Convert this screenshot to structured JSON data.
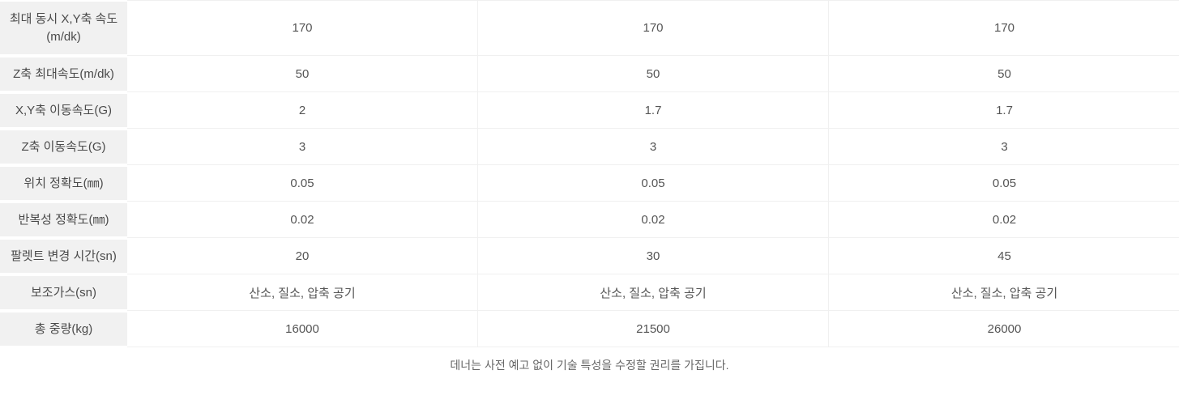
{
  "table": {
    "rows": [
      {
        "label": "최대 동시 X,Y축 속도 (m/dk)",
        "values": [
          "170",
          "170",
          "170"
        ]
      },
      {
        "label": "Z축 최대속도(m/dk)",
        "values": [
          "50",
          "50",
          "50"
        ]
      },
      {
        "label": "X,Y축 이동속도(G)",
        "values": [
          "2",
          "1.7",
          "1.7"
        ]
      },
      {
        "label": "Z축 이동속도(G)",
        "values": [
          "3",
          "3",
          "3"
        ]
      },
      {
        "label": "위치 정확도(㎜)",
        "values": [
          "0.05",
          "0.05",
          "0.05"
        ]
      },
      {
        "label": "반복성 정확도(㎜)",
        "values": [
          "0.02",
          "0.02",
          "0.02"
        ]
      },
      {
        "label": "팔렛트 변경 시간(sn)",
        "values": [
          "20",
          "30",
          "45"
        ]
      },
      {
        "label": "보조가스(sn)",
        "values": [
          "산소, 질소, 압축 공기",
          "산소, 질소, 압축 공기",
          "산소, 질소, 압축 공기"
        ]
      },
      {
        "label": "총 중량(kg)",
        "values": [
          "16000",
          "21500",
          "26000"
        ]
      }
    ]
  },
  "footer": {
    "note": "데너는 사전 예고 없이 기술 특성을 수정할 권리를 가집니다."
  },
  "colors": {
    "label_background": "#f1f1f1",
    "grid_line": "#f0f0f0",
    "label_text": "#4a4a4a",
    "value_text": "#555555",
    "footnote_text": "#666666"
  }
}
